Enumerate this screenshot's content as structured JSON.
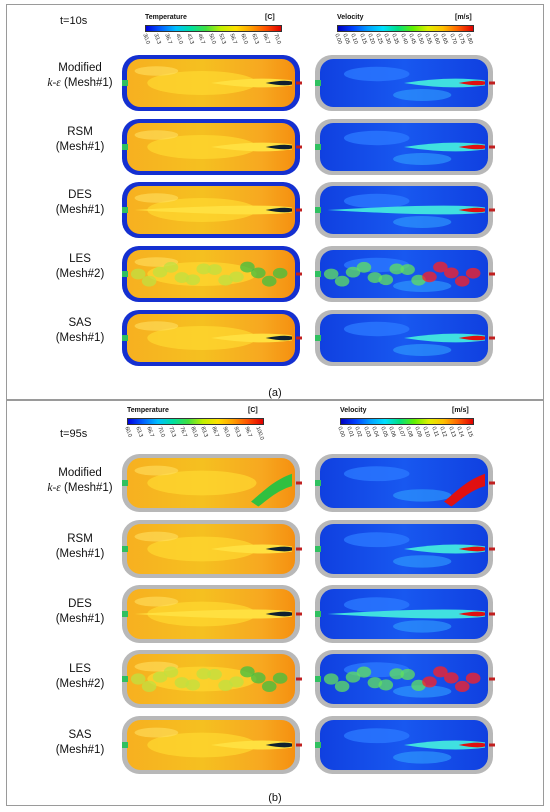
{
  "figure": {
    "panel_a": {
      "time": "t=10s",
      "caption": "(a)",
      "temperature_bar": {
        "title": "Temperature",
        "unit": "[C]",
        "ticks": [
          "30.0",
          "33.3",
          "36.7",
          "40.0",
          "43.3",
          "46.7",
          "50.0",
          "53.3",
          "56.7",
          "60.0",
          "63.3",
          "66.7",
          "70.0"
        ]
      },
      "velocity_bar": {
        "title": "Velocity",
        "unit": "[m/s]",
        "ticks": [
          "0.00",
          "0.05",
          "0.10",
          "0.15",
          "0.20",
          "0.25",
          "0.30",
          "0.35",
          "0.40",
          "0.45",
          "0.50",
          "0.55",
          "0.60",
          "0.65",
          "0.70",
          "0.75",
          "0.80"
        ]
      },
      "rows": [
        {
          "line1": "Modified",
          "line2_italic": "k-ε",
          "line2_rest": " (Mesh#1)"
        },
        {
          "line1": "RSM",
          "line2_italic": "",
          "line2_rest": "(Mesh#1)"
        },
        {
          "line1": "DES",
          "line2_italic": "",
          "line2_rest": "(Mesh#1)"
        },
        {
          "line1": "LES",
          "line2_italic": "",
          "line2_rest": "(Mesh#2)"
        },
        {
          "line1": "SAS",
          "line2_italic": "",
          "line2_rest": "(Mesh#1)"
        }
      ]
    },
    "panel_b": {
      "time": "t=95s",
      "caption": "(b)",
      "temperature_bar": {
        "title": "Temperature",
        "unit": "[C]",
        "ticks": [
          "60.0",
          "63.3",
          "66.7",
          "70.0",
          "73.3",
          "76.7",
          "80.0",
          "83.3",
          "86.7",
          "90.0",
          "93.3",
          "96.7",
          "100.0"
        ]
      },
      "velocity_bar": {
        "title": "Velocity",
        "unit": "[m/s]",
        "ticks": [
          "0.00",
          "0.01",
          "0.02",
          "0.03",
          "0.04",
          "0.05",
          "0.06",
          "0.07",
          "0.08",
          "0.09",
          "0.10",
          "0.11",
          "0.12",
          "0.13",
          "0.14",
          "0.15"
        ]
      },
      "rows": [
        {
          "line1": "Modified",
          "line2_italic": "k-ε",
          "line2_rest": " (Mesh#1)"
        },
        {
          "line1": "RSM",
          "line2_italic": "",
          "line2_rest": "(Mesh#1)"
        },
        {
          "line1": "DES",
          "line2_italic": "",
          "line2_rest": "(Mesh#1)"
        },
        {
          "line1": "LES",
          "line2_italic": "",
          "line2_rest": "(Mesh#2)"
        },
        {
          "line1": "SAS",
          "line2_italic": "",
          "line2_rest": "(Mesh#1)"
        }
      ]
    }
  },
  "colors": {
    "temperature_gradient": [
      "#0000e0",
      "#0060ff",
      "#00c0ff",
      "#00e0a0",
      "#40e040",
      "#c0f000",
      "#ffe000",
      "#ffa000",
      "#ff5000",
      "#e00000"
    ],
    "velocity_gradient": [
      "#0000c0",
      "#0040ff",
      "#00a0ff",
      "#00e0ff",
      "#00e080",
      "#60f000",
      "#e0f000",
      "#ffc000",
      "#ff6000",
      "#e00000"
    ],
    "tank_shell": "#1530d0",
    "tank_shell_grey": "#b8b8b8"
  }
}
